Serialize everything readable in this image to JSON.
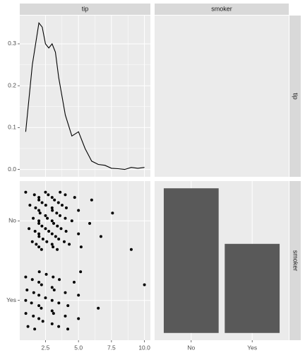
{
  "facets": {
    "columns": [
      "tip",
      "smoker"
    ],
    "rows": [
      "tip",
      "smoker"
    ]
  },
  "chart_data": [
    {
      "type": "line",
      "color": "#000000",
      "x": [
        1.0,
        1.5,
        2.0,
        2.25,
        2.5,
        2.75,
        3.0,
        3.25,
        3.5,
        4.0,
        4.5,
        5.0,
        5.5,
        6.0,
        6.5,
        7.0,
        7.5,
        8.0,
        8.5,
        9.0,
        9.5,
        10.0
      ],
      "values": [
        0.09,
        0.25,
        0.35,
        0.34,
        0.3,
        0.29,
        0.3,
        0.28,
        0.22,
        0.13,
        0.08,
        0.09,
        0.05,
        0.02,
        0.012,
        0.01,
        0.003,
        0.002,
        0.0,
        0.005,
        0.003,
        0.005
      ],
      "xlim": [
        0.55,
        10.45
      ],
      "ylim": [
        -0.0175,
        0.3675
      ],
      "yticks": [
        {
          "value": 0,
          "label": "0.0"
        },
        0.1,
        0.2,
        0.3
      ]
    },
    {
      "type": "scatter",
      "color": "#000000",
      "categories": [
        "No",
        "Yes"
      ],
      "points": [
        {
          "x": [
            1.0,
            1.25,
            1.32,
            1.5,
            1.57,
            1.66,
            1.71,
            1.75,
            1.8,
            2,
            2,
            2,
            2,
            2,
            2,
            2,
            2.01,
            2.09,
            2.2,
            2.23,
            2.24,
            2.31,
            2.5,
            2.5,
            2.5,
            2.52,
            2.6,
            2.64,
            2.71,
            2.75,
            3,
            3,
            3,
            3,
            3,
            3.02,
            3.07,
            3.12,
            3.18,
            3.27,
            3.35,
            3.39,
            3.4,
            3.48,
            3.5,
            3.6,
            3.61,
            3.68,
            3.76,
            3.92,
            4,
            4,
            4.06,
            4.08,
            4.3,
            4.5,
            4.71,
            5,
            5,
            5.2,
            5.85,
            6,
            6.7,
            7.58,
            9
          ]
        },
        {
          "x": [
            1,
            1,
            1.01,
            1.1,
            1.17,
            1.44,
            1.5,
            1.58,
            1.61,
            1.68,
            2,
            2,
            2,
            2,
            2.03,
            2.18,
            2.2,
            2.3,
            2.5,
            2.56,
            3,
            3,
            3,
            3,
            3.08,
            3.11,
            3.16,
            3.5,
            3.51,
            3.55,
            4,
            4,
            4.19,
            4.2,
            4.67,
            5,
            5,
            5.16,
            6.5,
            10
          ]
        }
      ],
      "xlim": [
        0.55,
        10.45
      ],
      "xticks": [
        2.5,
        {
          "value": 5,
          "label": "5.0"
        },
        7.5,
        {
          "value": 10,
          "label": "10.0"
        }
      ]
    },
    {
      "type": "bar",
      "color": "#595959",
      "categories": [
        "No",
        "Yes"
      ],
      "values": [
        151,
        93
      ],
      "ylim": [
        -7.55,
        158.55
      ]
    }
  ]
}
